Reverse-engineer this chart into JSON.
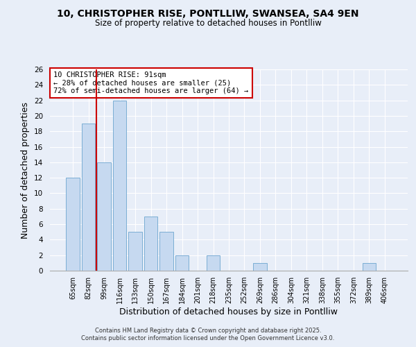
{
  "title1": "10, CHRISTOPHER RISE, PONTLLIW, SWANSEA, SA4 9EN",
  "title2": "Size of property relative to detached houses in Pontlliw",
  "xlabel": "Distribution of detached houses by size in Pontlliw",
  "ylabel": "Number of detached properties",
  "bar_labels": [
    "65sqm",
    "82sqm",
    "99sqm",
    "116sqm",
    "133sqm",
    "150sqm",
    "167sqm",
    "184sqm",
    "201sqm",
    "218sqm",
    "235sqm",
    "252sqm",
    "269sqm",
    "286sqm",
    "304sqm",
    "321sqm",
    "338sqm",
    "355sqm",
    "372sqm",
    "389sqm",
    "406sqm"
  ],
  "bar_values": [
    12,
    19,
    14,
    22,
    5,
    7,
    5,
    2,
    0,
    2,
    0,
    0,
    1,
    0,
    0,
    0,
    0,
    0,
    0,
    1,
    0
  ],
  "bar_color": "#c6d9f0",
  "bar_edge_color": "#7baed4",
  "vline_color": "#cc0000",
  "annotation_lines": [
    "10 CHRISTOPHER RISE: 91sqm",
    "← 28% of detached houses are smaller (25)",
    "72% of semi-detached houses are larger (64) →"
  ],
  "annotation_box_color": "#ffffff",
  "annotation_box_edge": "#cc0000",
  "ylim": [
    0,
    26
  ],
  "yticks": [
    0,
    2,
    4,
    6,
    8,
    10,
    12,
    14,
    16,
    18,
    20,
    22,
    24,
    26
  ],
  "background_color": "#e8eef8",
  "grid_color": "#ffffff",
  "footer1": "Contains HM Land Registry data © Crown copyright and database right 2025.",
  "footer2": "Contains public sector information licensed under the Open Government Licence v3.0."
}
